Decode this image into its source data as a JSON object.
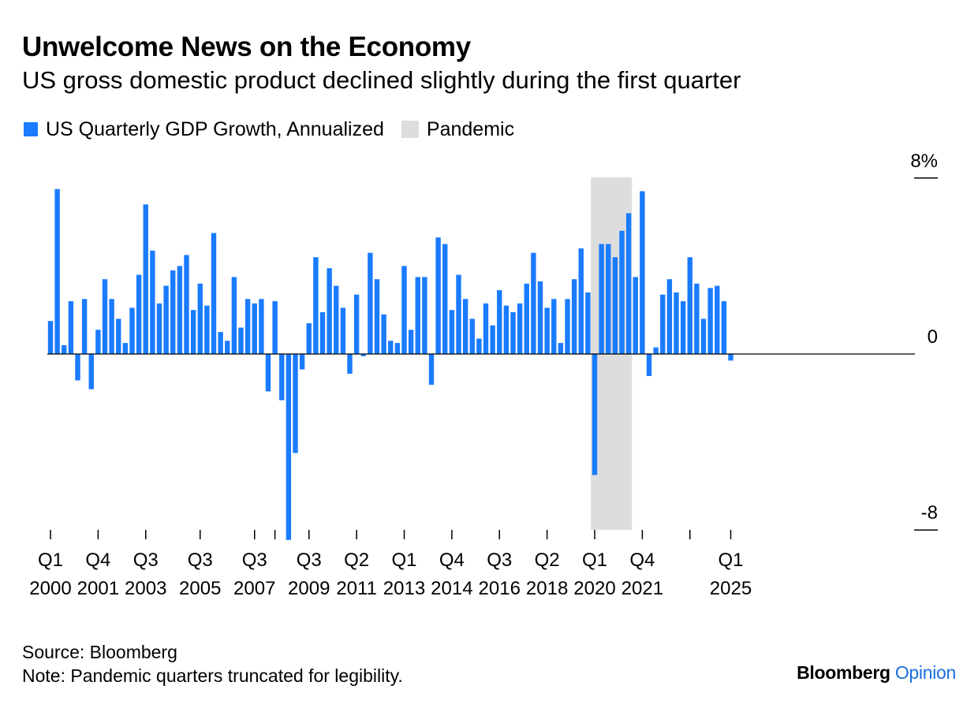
{
  "header": {
    "title": "Unwelcome News on the Economy",
    "subtitle": "US gross domestic product declined slightly during the first quarter"
  },
  "legend": {
    "items": [
      {
        "label": "US Quarterly GDP Growth, Annualized",
        "color": "#1a7bff"
      },
      {
        "label": "Pandemic",
        "color": "#dddddd"
      }
    ]
  },
  "footer": {
    "source": "Source: Bloomberg",
    "note": "Note: Pandemic quarters truncated for legibility.",
    "brand_primary": "Bloomberg",
    "brand_secondary": "Opinion"
  },
  "chart_data": {
    "type": "bar",
    "title": "Unwelcome News on the Economy",
    "subtitle": "US gross domestic product declined slightly during the first quarter",
    "series": [
      {
        "name": "US Quarterly GDP Growth, Annualized",
        "color": "#1a7bff",
        "start_quarter": "2000-Q1",
        "values": [
          1.5,
          7.5,
          0.4,
          2.4,
          -1.2,
          2.5,
          -1.6,
          1.1,
          3.4,
          2.5,
          1.6,
          0.5,
          2.1,
          3.6,
          6.8,
          4.7,
          2.3,
          3.1,
          3.8,
          4.0,
          4.5,
          2.0,
          3.2,
          2.2,
          5.5,
          1.0,
          0.6,
          3.5,
          1.2,
          2.5,
          2.3,
          2.5,
          -1.7,
          2.4,
          -2.1,
          -8.5,
          -4.5,
          -0.7,
          1.4,
          4.4,
          1.9,
          3.9,
          3.1,
          2.1,
          -0.9,
          2.7,
          -0.1,
          4.6,
          3.4,
          1.8,
          0.6,
          0.5,
          4.0,
          1.1,
          3.5,
          3.5,
          -1.4,
          5.3,
          5.0,
          2.0,
          3.6,
          2.5,
          1.6,
          0.7,
          2.3,
          1.3,
          2.9,
          2.2,
          1.9,
          2.3,
          3.2,
          4.6,
          3.3,
          2.1,
          2.5,
          0.5,
          2.5,
          3.4,
          4.8,
          2.8,
          -5.5,
          5.0,
          5.0,
          4.4,
          5.6,
          6.4,
          3.5,
          7.4,
          -1.0,
          0.3,
          2.7,
          3.4,
          2.8,
          2.4,
          4.4,
          3.2,
          1.6,
          3.0,
          3.1,
          2.4,
          -0.3
        ]
      },
      {
        "name": "Pandemic",
        "color": "#dddddd",
        "shaded_quarters": [
          "2020-Q1",
          "2021-Q2"
        ]
      }
    ],
    "ylim": [
      -8,
      8
    ],
    "yticks": [
      "-8",
      "0",
      "8%"
    ],
    "ytick_values": [
      -8,
      0,
      8
    ],
    "xticks": [
      {
        "quarter": "2000-Q1",
        "top": "Q1",
        "bottom": "2000"
      },
      {
        "quarter": "2001-Q4",
        "top": "Q4",
        "bottom": "2001"
      },
      {
        "quarter": "2003-Q3",
        "top": "Q3",
        "bottom": "2003"
      },
      {
        "quarter": "2005-Q3",
        "top": "Q3",
        "bottom": "2005"
      },
      {
        "quarter": "2007-Q3",
        "top": "Q3",
        "bottom": "2007"
      },
      {
        "quarter": "2009-Q3",
        "top": "Q3",
        "bottom": "2009"
      },
      {
        "quarter": "2011-Q2",
        "top": "Q2",
        "bottom": "2011"
      },
      {
        "quarter": "2013-Q1",
        "top": "Q1",
        "bottom": "2013"
      },
      {
        "quarter": "2014-Q4",
        "top": "Q4",
        "bottom": "2014"
      },
      {
        "quarter": "2016-Q3",
        "top": "Q3",
        "bottom": "2016"
      },
      {
        "quarter": "2018-Q2",
        "top": "Q2",
        "bottom": "2018"
      },
      {
        "quarter": "2020-Q1",
        "top": "Q1",
        "bottom": "2020"
      },
      {
        "quarter": "2021-Q4",
        "top": "Q4",
        "bottom": "2021"
      },
      {
        "quarter": "2025-Q1",
        "top": "Q1",
        "bottom": "2025"
      }
    ],
    "extra_xtick_quarters": [
      "2008-Q2",
      "2023-Q3"
    ],
    "grid": false,
    "legend_position": "top-left"
  }
}
